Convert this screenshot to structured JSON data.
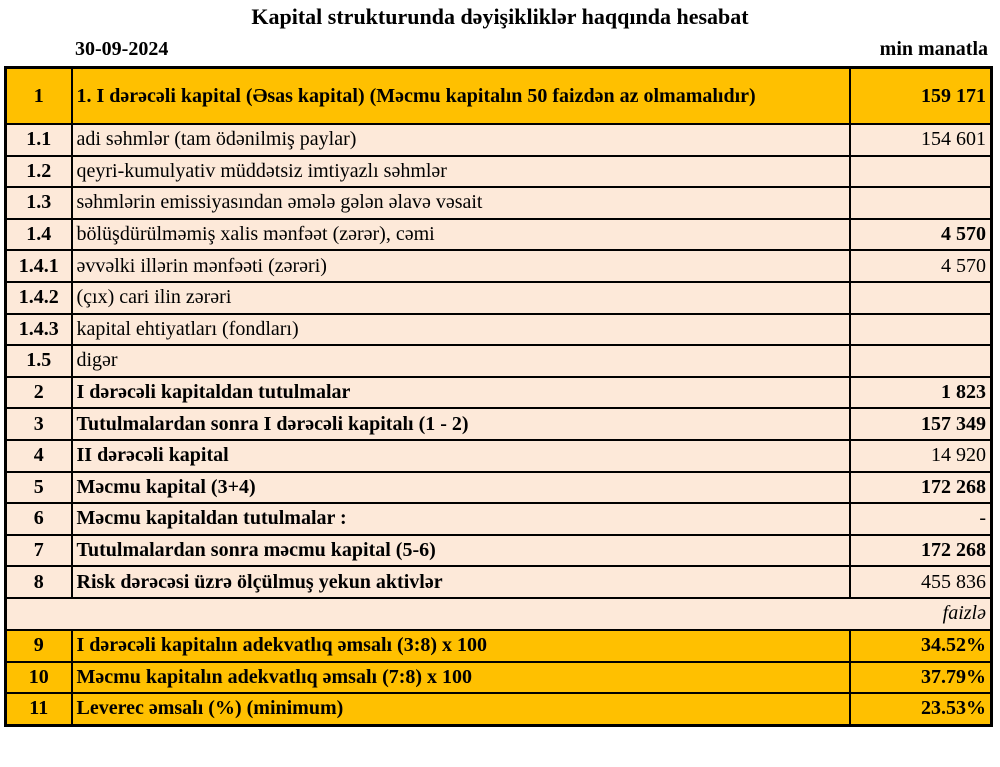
{
  "header": {
    "title": "Kapital strukturunda dəyişikliklər haqqında hesabat",
    "date": "30-09-2024",
    "unit": "min manatla"
  },
  "table": {
    "rows": [
      {
        "no": "1",
        "label": "1. I dərəcəli kapital (Əsas kapital) (Məcmu kapitalın 50 faizdən  az olmamalıdır)",
        "value": "159 171"
      },
      {
        "no": "1.1",
        "label": "adi səhmlər (tam ödənilmiş paylar)",
        "value": "154 601"
      },
      {
        "no": "1.2",
        "label": "qeyri-kumulyativ müddətsiz imtiyazlı səhmlər"
      },
      {
        "no": "1.3",
        "label": "səhmlərin emissiyasından əmələ gələn  əlavə vəsait"
      },
      {
        "no": "1.4",
        "label": "bölüşdürülməmiş xalis mənfəət (zərər), cəmi",
        "value": "4 570"
      },
      {
        "no": "1.4.1",
        "label": "əvvəlki illərin mənfəəti (zərəri)",
        "value": "4 570"
      },
      {
        "no": "1.4.2",
        "label": "(çıx) cari ilin zərəri"
      },
      {
        "no": "1.4.3",
        "label": "kapital ehtiyatları (fondları)"
      },
      {
        "no": "1.5",
        "label": "digər"
      },
      {
        "no": "2",
        "label": "I dərəcəli kapitaldan  tutulmalar",
        "value": "1 823"
      },
      {
        "no": "3",
        "label": "Tutulmalardan  sonra I dərəcəli kapitalı (1 - 2)",
        "value": "157 349"
      },
      {
        "no": "4",
        "label": "II dərəcəli  kapital",
        "value": "14 920"
      },
      {
        "no": "5",
        "label": "Məcmu kapital (3+4)",
        "value": "172 268"
      },
      {
        "no": "6",
        "label": "Məcmu kapitaldan tutulmalar :",
        "value": "-"
      },
      {
        "no": "7",
        "label": "Tutulmalardan sonra məcmu kapital (5-6)",
        "value": "172 268"
      },
      {
        "no": "8",
        "label": "Risk dərəcəsi üzrə ölçülmuş  yekun aktivlər",
        "value": "455 836"
      }
    ],
    "percent_note": "faizlə",
    "ratio_rows": [
      {
        "no": "9",
        "label": "I dərəcəli  kapitalın  adekvatlıq əmsalı (3:8) x 100",
        "value": "34.52%"
      },
      {
        "no": "10",
        "label": "Məcmu kapitalın  adekvatlıq  əmsalı (7:8) x 100",
        "value": "37.79%"
      },
      {
        "no": "11",
        "label": " Leverec əmsalı (%) (minimum)",
        "value": "23.53%"
      }
    ]
  }
}
